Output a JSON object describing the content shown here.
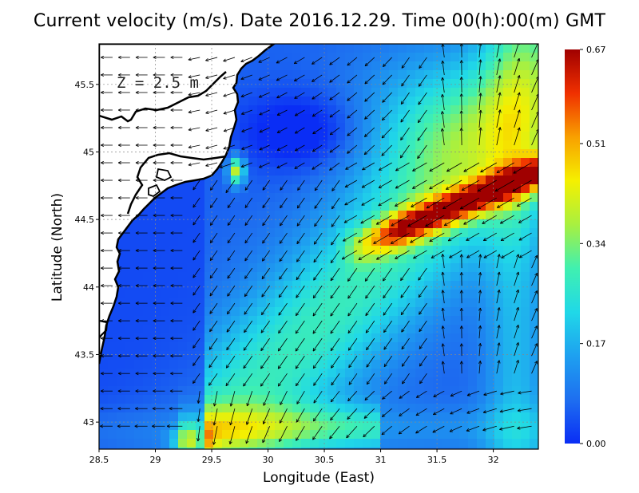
{
  "title": "Current velocity (m/s). Date 2016.12.29. Time 00(h):00(m) GMT",
  "depth_label": "Z = 2.5 m",
  "colors": {
    "colormap": [
      "#0a2df5",
      "#1e6ff0",
      "#1ea0f0",
      "#20d8e8",
      "#40f0b0",
      "#a8f040",
      "#f5f000",
      "#f8a000",
      "#f03000",
      "#a00000"
    ],
    "land": "#ffffff",
    "coast": "#000000",
    "arrows": "#000000"
  },
  "chart_data": {
    "type": "heatmap",
    "title": "Current velocity (m/s). Date 2016.12.29. Time 00(h):00(m) GMT",
    "xlabel": "Longitude (East)",
    "ylabel": "Latitude (North)",
    "xlim": [
      28.5,
      32.4
    ],
    "ylim": [
      42.8,
      45.8
    ],
    "xticks": [
      "28.5",
      "29",
      "29.5",
      "30",
      "30.5",
      "31",
      "31.5",
      "32"
    ],
    "yticks": [
      "43",
      "43.5",
      "44",
      "44.5",
      "45",
      "45.5"
    ],
    "grid": true,
    "colorbar": {
      "ticks": [
        "0.00",
        "0.17",
        "0.34",
        "0.51",
        "0.67"
      ],
      "range": [
        0,
        0.67
      ]
    },
    "features": [
      {
        "name": "strong current band",
        "from": [
          30.8,
          44.3
        ],
        "to": [
          32.4,
          44.85
        ],
        "max_speed": 0.6
      },
      {
        "name": "southwest jet",
        "center": [
          29.3,
          42.9
        ],
        "max_speed": 0.55
      },
      {
        "name": "danube mouth jet",
        "center": [
          29.72,
          44.85
        ],
        "max_speed": 0.5
      }
    ]
  }
}
